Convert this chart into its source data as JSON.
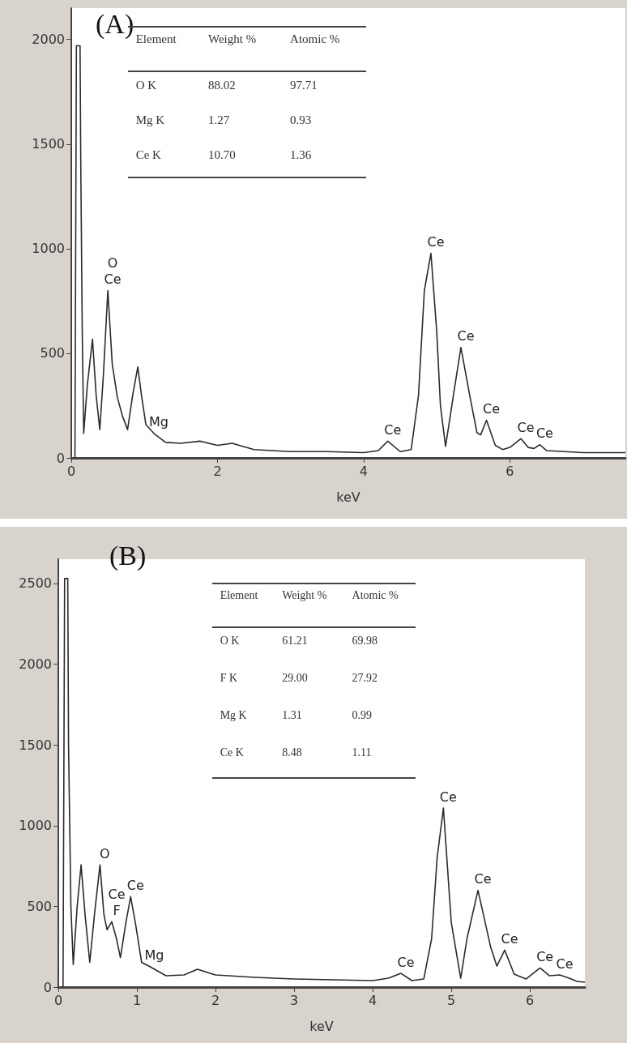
{
  "chart_data": [
    {
      "type": "line",
      "title": "(A)",
      "xlabel": "keV",
      "color": "#2b2b2b",
      "marker": "none",
      "line_style": "solid",
      "x": [
        0.05,
        0.07,
        0.12,
        0.13,
        0.15,
        0.17,
        0.22,
        0.29,
        0.34,
        0.39,
        0.44,
        0.5,
        0.56,
        0.63,
        0.7,
        0.77,
        0.84,
        0.91,
        0.96,
        1.02,
        1.13,
        1.29,
        1.5,
        1.76,
        2.0,
        2.2,
        2.5,
        3.0,
        3.5,
        4.0,
        4.2,
        4.33,
        4.5,
        4.65,
        4.75,
        4.83,
        4.92,
        5.0,
        5.05,
        5.12,
        5.25,
        5.33,
        5.45,
        5.55,
        5.6,
        5.68,
        5.8,
        5.9,
        6.0,
        6.15,
        6.25,
        6.33,
        6.41,
        6.5,
        7.0,
        7.58
      ],
      "values": [
        0,
        1970,
        1970,
        1400,
        600,
        117,
        350,
        567,
        300,
        135,
        400,
        800,
        450,
        290,
        200,
        135,
        300,
        435,
        300,
        160,
        117,
        74,
        70,
        80,
        60,
        70,
        40,
        30,
        30,
        25,
        35,
        80,
        30,
        40,
        300,
        800,
        978,
        600,
        250,
        55,
        350,
        528,
        300,
        120,
        110,
        180,
        60,
        40,
        50,
        92,
        50,
        45,
        63,
        35,
        25,
        25
      ],
      "xlim": [
        0,
        7.58
      ],
      "ylim": [
        0,
        2150
      ],
      "xticks": [
        0,
        2,
        4,
        6
      ],
      "yticks": [
        0,
        500,
        1000,
        1500,
        2000
      ],
      "annotations": [
        "Element",
        "Weight %",
        "Atomic %",
        "O K",
        "88.02",
        "97.71",
        "Mg K",
        "1.27",
        "0.93",
        "Ce K",
        "10.70",
        "1.36",
        {
          "text": "Ce",
          "x": 0.5,
          "y": 800
        },
        {
          "text": "O",
          "x": 0.5,
          "y": 800
        },
        {
          "text": "Mg",
          "x": 1.13,
          "y": 117
        },
        {
          "text": "Ce",
          "x": 4.33,
          "y": 80
        },
        {
          "text": "Ce",
          "x": 4.92,
          "y": 978
        },
        {
          "text": "Ce",
          "x": 5.33,
          "y": 528
        },
        {
          "text": "Ce",
          "x": 5.68,
          "y": 180
        },
        {
          "text": "Ce",
          "x": 6.15,
          "y": 92
        },
        {
          "text": "Ce",
          "x": 6.41,
          "y": 63
        }
      ]
    },
    {
      "type": "line",
      "title": "(B)",
      "xlabel": "keV",
      "color": "#2b2b2b",
      "marker": "none",
      "line_style": "solid",
      "x": [
        0.06,
        0.08,
        0.12,
        0.13,
        0.16,
        0.19,
        0.24,
        0.29,
        0.34,
        0.4,
        0.46,
        0.53,
        0.58,
        0.62,
        0.68,
        0.74,
        0.79,
        0.86,
        0.92,
        0.98,
        1.06,
        1.16,
        1.37,
        1.6,
        1.77,
        2.0,
        2.5,
        3.0,
        3.5,
        4.0,
        4.2,
        4.36,
        4.5,
        4.65,
        4.75,
        4.82,
        4.9,
        5.0,
        5.12,
        5.2,
        5.34,
        5.5,
        5.58,
        5.68,
        5.8,
        5.95,
        6.13,
        6.25,
        6.38,
        6.5,
        6.6,
        6.7
      ],
      "values": [
        0,
        2530,
        2530,
        1500,
        500,
        140,
        500,
        757,
        450,
        153,
        450,
        757,
        450,
        355,
        405,
        300,
        183,
        400,
        560,
        400,
        153,
        128,
        70,
        75,
        110,
        75,
        60,
        50,
        45,
        40,
        55,
        85,
        40,
        50,
        300,
        800,
        1109,
        400,
        55,
        300,
        599,
        250,
        130,
        229,
        80,
        50,
        118,
        70,
        75,
        55,
        35,
        30
      ],
      "xlim": [
        0,
        6.7
      ],
      "ylim": [
        0,
        2650
      ],
      "xticks": [
        0,
        1,
        2,
        3,
        4,
        5,
        6
      ],
      "yticks": [
        0,
        500,
        1000,
        1500,
        2000,
        2500
      ],
      "annotations": [
        "Element",
        "Weight %",
        "Atomic %",
        "O K",
        "61.21",
        "69.98",
        "F K",
        "29.00",
        "27.92",
        "Mg K",
        "1.31",
        "0.99",
        "Ce K",
        "8.48",
        "1.11",
        {
          "text": "O",
          "x": 0.53,
          "y": 757
        },
        {
          "text": "F",
          "x": 0.68,
          "y": 405
        },
        {
          "text": "Ce",
          "x": 0.68,
          "y": 405
        },
        {
          "text": "Ce",
          "x": 0.92,
          "y": 560
        },
        {
          "text": "Mg",
          "x": 1.16,
          "y": 128
        },
        {
          "text": "Ce",
          "x": 4.36,
          "y": 85
        },
        {
          "text": "Ce",
          "x": 4.9,
          "y": 1109
        },
        {
          "text": "Ce",
          "x": 5.34,
          "y": 599
        },
        {
          "text": "Ce",
          "x": 5.68,
          "y": 229
        },
        {
          "text": "Ce",
          "x": 6.13,
          "y": 118
        },
        {
          "text": "Ce",
          "x": 6.38,
          "y": 75
        }
      ]
    }
  ]
}
